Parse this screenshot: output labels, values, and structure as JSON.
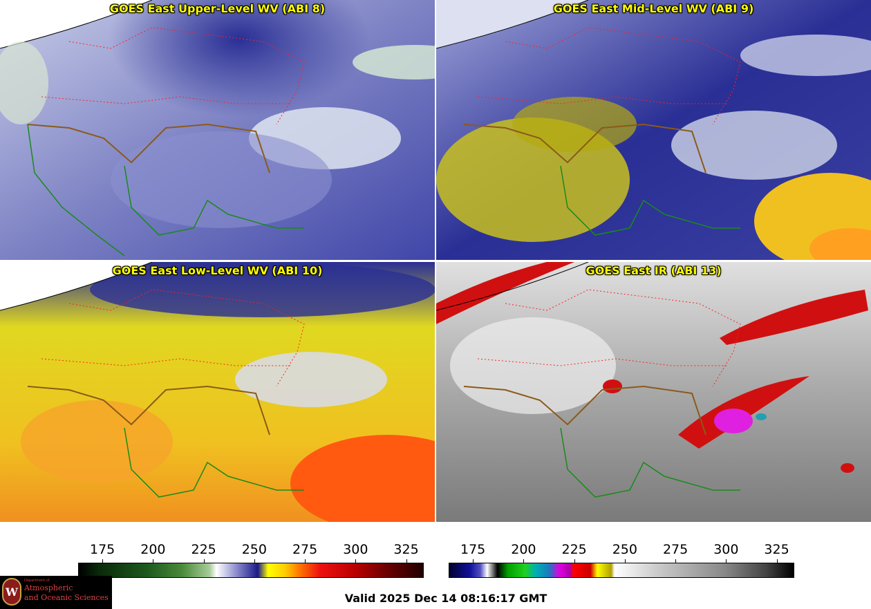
{
  "panels": [
    {
      "title": "GOES East Upper-Level WV (ABI 8)",
      "scheme": "wv"
    },
    {
      "title": "GOES East Mid-Level WV (ABI 9)",
      "scheme": "wv-mid"
    },
    {
      "title": "GOES East Low-Level WV (ABI 10)",
      "scheme": "wv-low"
    },
    {
      "title": "GOES East IR (ABI 13)",
      "scheme": "ir"
    }
  ],
  "colorbars": [
    {
      "name": "water-vapor-colorbar",
      "ticks": [
        "175",
        "200",
        "225",
        "250",
        "275",
        "300",
        "325"
      ],
      "min": 163,
      "max": 333
    },
    {
      "name": "infrared-colorbar",
      "ticks": [
        "175",
        "200",
        "225",
        "250",
        "275",
        "300",
        "325"
      ],
      "min": 163,
      "max": 333
    }
  ],
  "valid_time": "Valid 2025 Dec 14 08:16:17 GMT",
  "logo": {
    "seal_letter": "W",
    "dept_line": "Department of",
    "line1": "Atmospheric",
    "line2": "and Oceanic Sciences"
  },
  "colors": {
    "title_text": "#ffff00",
    "state_borders": "#ff2020",
    "coastlines": "#1a8a1a",
    "us_border": "#8b5a1a"
  }
}
